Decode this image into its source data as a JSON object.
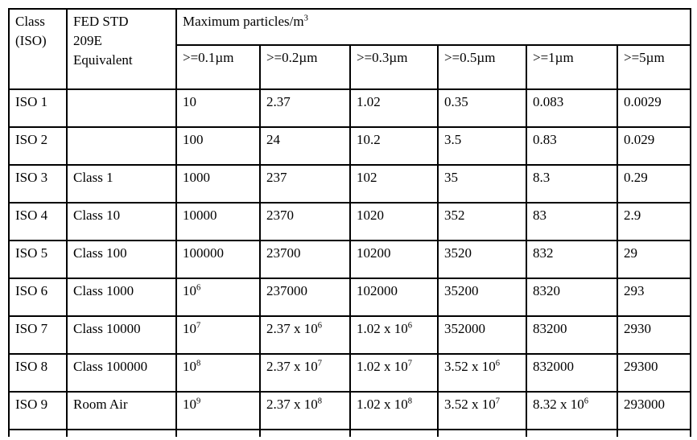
{
  "colors": {
    "text": "#000000",
    "border": "#000000",
    "background": "#ffffff"
  },
  "table": {
    "header": {
      "col_class": "Class\n(ISO)",
      "col_fed": "FED STD\n209E\nEquivalent",
      "col_max": "Maximum particles/m^3",
      "sub_columns": [
        ">=0.1µm",
        ">=0.2µm",
        ">=0.3µm",
        ">=0.5µm",
        ">=1µm",
        ">=5µm"
      ]
    },
    "rows": [
      {
        "iso": "ISO 1",
        "fed": "",
        "values": [
          "10",
          "2.37",
          "1.02",
          "0.35",
          "0.083",
          "0.0029"
        ]
      },
      {
        "iso": "ISO 2",
        "fed": "",
        "values": [
          "100",
          "24",
          "10.2",
          "3.5",
          "0.83",
          "0.029"
        ]
      },
      {
        "iso": "ISO 3",
        "fed": "Class 1",
        "values": [
          "1000",
          "237",
          "102",
          "35",
          "8.3",
          "0.29"
        ]
      },
      {
        "iso": "ISO 4",
        "fed": "Class 10",
        "values": [
          "10000",
          "2370",
          "1020",
          "352",
          "83",
          "2.9"
        ]
      },
      {
        "iso": "ISO 5",
        "fed": "Class 100",
        "values": [
          "100000",
          "23700",
          "10200",
          "3520",
          "832",
          "29"
        ]
      },
      {
        "iso": "ISO 6",
        "fed": "Class 1000",
        "values": [
          "10^6",
          "237000",
          "102000",
          "35200",
          "8320",
          "293"
        ]
      },
      {
        "iso": "ISO 7",
        "fed": "Class 10000",
        "values": [
          "10^7",
          "2.37 x 10^6",
          "1.02 x 10^6",
          "352000",
          "83200",
          "2930"
        ]
      },
      {
        "iso": "ISO 8",
        "fed": "Class 100000",
        "values": [
          "10^8",
          "2.37 x 10^7",
          "1.02 x 10^7",
          "3.52 x 10^6",
          "832000",
          "29300"
        ]
      },
      {
        "iso": "ISO 9",
        "fed": "Room Air",
        "values": [
          "10^9",
          "2.37 x 10^8",
          "1.02 x 10^8",
          "3.52 x 10^7",
          "8.32 x 10^6",
          "293000"
        ]
      }
    ]
  }
}
